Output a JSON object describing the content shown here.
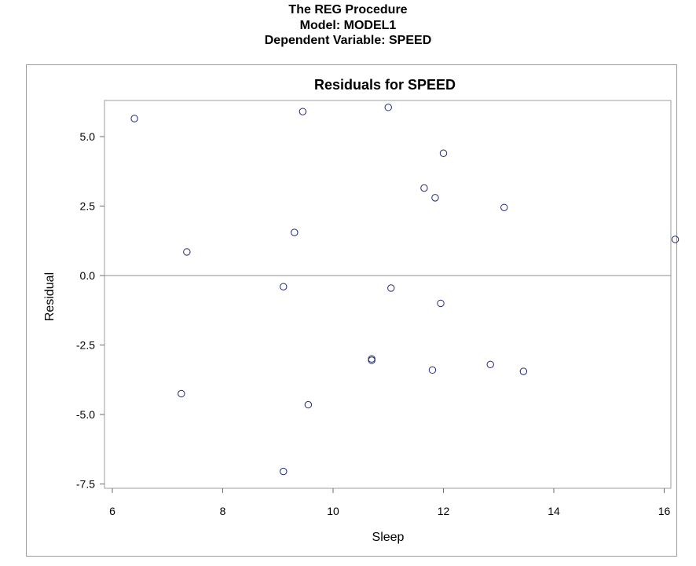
{
  "header": {
    "line1": "The REG Procedure",
    "line2": "Model: MODEL1",
    "line3": "Dependent Variable: SPEED"
  },
  "colors": {
    "marker": "#1f2a7c",
    "axis": "#6e6e6e",
    "frame": "#9c9c9c",
    "reference_line": "#8c8c8c"
  },
  "chart_data": {
    "type": "scatter",
    "title": "Residuals for SPEED",
    "xlabel": "Sleep",
    "ylabel": "Residual",
    "xlim": [
      5.85,
      16.2
    ],
    "ylim": [
      -7.75,
      6.25
    ],
    "xticks": [
      6,
      8,
      10,
      12,
      14,
      16
    ],
    "yticks": [
      5.0,
      2.5,
      0.0,
      -2.5,
      -5.0,
      -7.5
    ],
    "ytick_labels": [
      "5.0",
      "2.5",
      "0.0",
      "-2.5",
      "-5.0",
      "-7.5"
    ],
    "reference_line_y": 0,
    "grid": false,
    "marker": "open-circle",
    "points": [
      {
        "x": 6.4,
        "y": 5.65
      },
      {
        "x": 7.25,
        "y": -4.25
      },
      {
        "x": 7.35,
        "y": 0.85
      },
      {
        "x": 9.1,
        "y": -0.4
      },
      {
        "x": 9.1,
        "y": -7.05
      },
      {
        "x": 9.3,
        "y": 1.55
      },
      {
        "x": 9.45,
        "y": 5.9
      },
      {
        "x": 9.55,
        "y": -4.65
      },
      {
        "x": 10.7,
        "y": -3.05
      },
      {
        "x": 10.7,
        "y": -3.0
      },
      {
        "x": 11.0,
        "y": 6.05
      },
      {
        "x": 11.05,
        "y": -0.45
      },
      {
        "x": 11.65,
        "y": 3.15
      },
      {
        "x": 11.8,
        "y": -3.4
      },
      {
        "x": 11.85,
        "y": 2.8
      },
      {
        "x": 11.95,
        "y": -1.0
      },
      {
        "x": 12.0,
        "y": 4.4
      },
      {
        "x": 12.85,
        "y": -3.2
      },
      {
        "x": 13.1,
        "y": 2.45
      },
      {
        "x": 13.45,
        "y": -3.45
      },
      {
        "x": 16.2,
        "y": 1.3
      }
    ]
  }
}
